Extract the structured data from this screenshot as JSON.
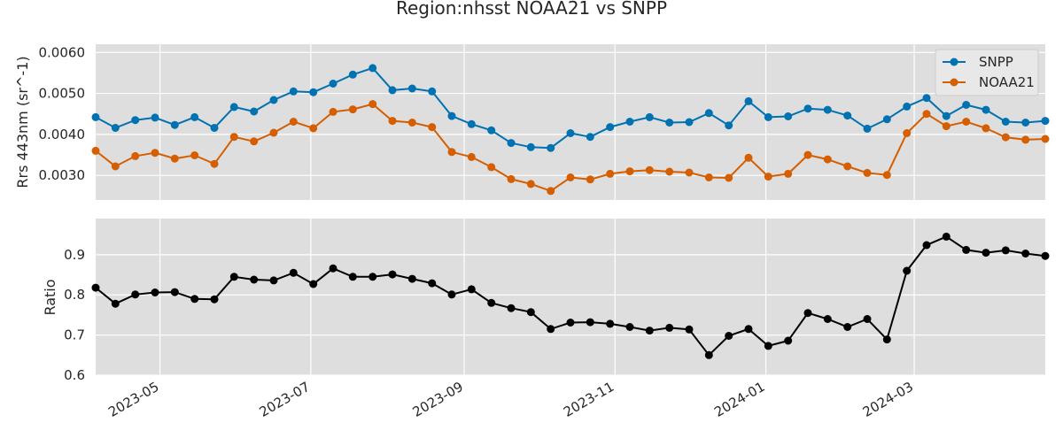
{
  "chart_data": {
    "type": "line",
    "title": "Region:nhsst NOAA21 vs SNPP",
    "x": [
      "2023-04-05",
      "2023-04-13",
      "2023-04-21",
      "2023-04-29",
      "2023-05-07",
      "2023-05-15",
      "2023-05-23",
      "2023-05-31",
      "2023-06-08",
      "2023-06-16",
      "2023-06-24",
      "2023-07-02",
      "2023-07-10",
      "2023-07-18",
      "2023-07-26",
      "2023-08-03",
      "2023-08-11",
      "2023-08-19",
      "2023-08-27",
      "2023-09-04",
      "2023-09-12",
      "2023-09-20",
      "2023-09-28",
      "2023-10-06",
      "2023-10-14",
      "2023-10-22",
      "2023-10-30",
      "2023-11-07",
      "2023-11-15",
      "2023-11-23",
      "2023-12-01",
      "2023-12-09",
      "2023-12-17",
      "2023-12-25",
      "2024-01-02",
      "2024-01-10",
      "2024-01-18",
      "2024-01-26",
      "2024-02-03",
      "2024-02-11",
      "2024-02-19",
      "2024-02-27",
      "2024-03-06",
      "2024-03-14",
      "2024-03-22",
      "2024-03-30",
      "2024-04-07",
      "2024-04-15",
      "2024-04-23"
    ],
    "x_ticks": [
      "2023-05",
      "2023-07",
      "2023-09",
      "2023-11",
      "2024-01",
      "2024-03"
    ],
    "panels": [
      {
        "ylabel": "Rrs 443nm (sr^-1)",
        "ylim": [
          0.0024,
          0.0062
        ],
        "y_ticks": [
          "0.0030",
          "0.0040",
          "0.0050",
          "0.0060"
        ],
        "legend_position": "top-right",
        "grid": true,
        "series": [
          {
            "name": "SNPP",
            "color": "#0072b2",
            "values": [
              0.00442,
              0.00416,
              0.00435,
              0.00441,
              0.00423,
              0.00442,
              0.00416,
              0.00467,
              0.00456,
              0.00484,
              0.00505,
              0.00503,
              0.00524,
              0.00546,
              0.00562,
              0.00508,
              0.00512,
              0.00505,
              0.00445,
              0.00425,
              0.0041,
              0.00379,
              0.00369,
              0.00367,
              0.00403,
              0.00394,
              0.00418,
              0.00431,
              0.00442,
              0.00429,
              0.0043,
              0.00452,
              0.00422,
              0.00481,
              0.00442,
              0.00444,
              0.00463,
              0.0046,
              0.00446,
              0.00414,
              0.00437,
              0.00468,
              0.00489,
              0.00445,
              0.00472,
              0.0046,
              0.00431,
              0.00429,
              0.00433
            ]
          },
          {
            "name": "NOAA21",
            "color": "#d55e00",
            "values": [
              0.0036,
              0.00322,
              0.00347,
              0.00355,
              0.00341,
              0.00349,
              0.00328,
              0.00394,
              0.00383,
              0.00404,
              0.00431,
              0.00415,
              0.00455,
              0.00461,
              0.00474,
              0.00433,
              0.00429,
              0.00418,
              0.00357,
              0.00345,
              0.0032,
              0.00291,
              0.00279,
              0.00262,
              0.00295,
              0.0029,
              0.00304,
              0.0031,
              0.00313,
              0.00309,
              0.00307,
              0.00295,
              0.00294,
              0.00343,
              0.00297,
              0.00304,
              0.0035,
              0.00339,
              0.00322,
              0.00306,
              0.00301,
              0.00403,
              0.0045,
              0.0042,
              0.00431,
              0.00415,
              0.00393,
              0.00387,
              0.00389
            ]
          }
        ]
      },
      {
        "ylabel": "Ratio",
        "ylim": [
          0.6,
          0.99
        ],
        "y_ticks": [
          "0.6",
          "0.7",
          "0.8",
          "0.9"
        ],
        "grid": true,
        "series": [
          {
            "name": "",
            "color": "#000000",
            "values": [
              0.818,
              0.778,
              0.801,
              0.806,
              0.807,
              0.79,
              0.789,
              0.845,
              0.838,
              0.836,
              0.855,
              0.827,
              0.866,
              0.845,
              0.845,
              0.851,
              0.84,
              0.829,
              0.801,
              0.814,
              0.78,
              0.767,
              0.757,
              0.715,
              0.731,
              0.732,
              0.728,
              0.72,
              0.711,
              0.718,
              0.714,
              0.65,
              0.698,
              0.715,
              0.673,
              0.686,
              0.755,
              0.74,
              0.72,
              0.74,
              0.689,
              0.86,
              0.924,
              0.945,
              0.912,
              0.905,
              0.911,
              0.903,
              0.897
            ]
          }
        ]
      }
    ]
  }
}
